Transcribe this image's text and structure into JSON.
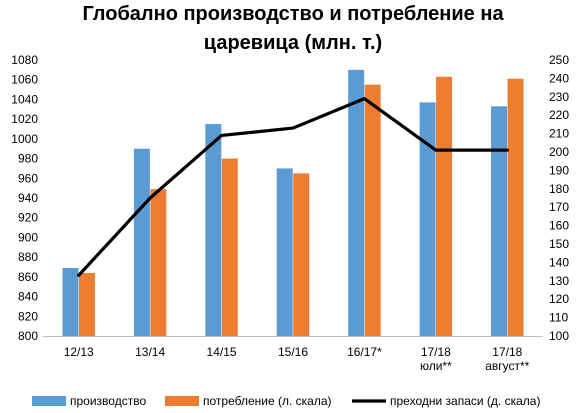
{
  "chart_data": {
    "type": "bar",
    "title_line1": "Глобално производство и потребление на",
    "title_line2": "царевица (млн. т.)",
    "categories": [
      [
        "12/13"
      ],
      [
        "13/14"
      ],
      [
        "14/15"
      ],
      [
        "15/16"
      ],
      [
        "16/17*"
      ],
      [
        "17/18",
        "юли**"
      ],
      [
        "17/18",
        "август**"
      ]
    ],
    "y_left": {
      "min": 800,
      "max": 1080,
      "step": 20,
      "ticks": [
        "800",
        "820",
        "840",
        "860",
        "880",
        "900",
        "920",
        "940",
        "960",
        "980",
        "1000",
        "1020",
        "1040",
        "1060",
        "1080"
      ]
    },
    "y_right": {
      "min": 100,
      "max": 250,
      "step": 10,
      "ticks": [
        "100",
        "110",
        "120",
        "130",
        "140",
        "150",
        "160",
        "170",
        "180",
        "190",
        "200",
        "210",
        "220",
        "230",
        "240",
        "250"
      ]
    },
    "series": [
      {
        "name": "производство",
        "axis": "left",
        "kind": "bar",
        "color": "#5B9BD5",
        "values": [
          869,
          990,
          1015,
          970,
          1070,
          1037,
          1033
        ]
      },
      {
        "name": "потребление (л. скала)",
        "axis": "left",
        "kind": "bar",
        "color": "#ED7D31",
        "values": [
          864,
          949,
          980,
          965,
          1055,
          1063,
          1061
        ]
      },
      {
        "name": "преходни запаси (д. скала)",
        "axis": "right",
        "kind": "line",
        "color": "#000000",
        "values": [
          133,
          175,
          209,
          213,
          229,
          201,
          201
        ]
      }
    ],
    "legend_position": "bottom",
    "grid": false
  }
}
